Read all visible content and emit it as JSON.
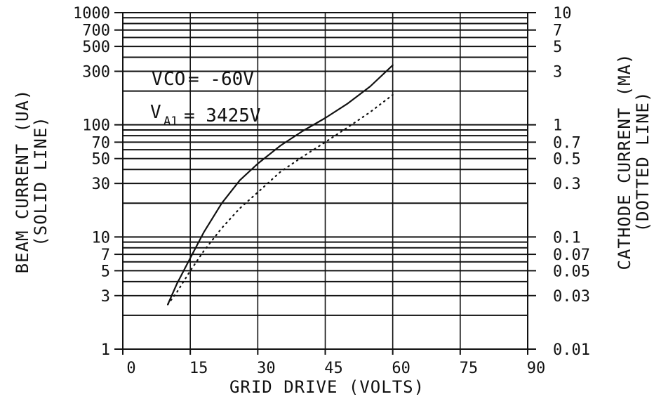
{
  "chart_data": {
    "type": "line",
    "xlabel": "GRID DRIVE (VOLTS)",
    "ylabel_left": [
      "BEAM CURRENT (UA)",
      "(SOLID LINE)"
    ],
    "ylabel_right": [
      "CATHODE CURRENT (MA)",
      "(DOTTED LINE)"
    ],
    "xlim": [
      0,
      90
    ],
    "x_ticks": [
      "0",
      "15",
      "30",
      "45",
      "60",
      "75",
      "90"
    ],
    "x_tick_values": [
      0,
      15,
      30,
      45,
      60,
      75,
      90
    ],
    "ylim_left": [
      1,
      1000
    ],
    "y_scale": "log",
    "y_ticks_left": [
      "1000",
      "700",
      "500",
      "300",
      "100",
      "70",
      "50",
      "30",
      "10",
      "7",
      "5",
      "3",
      "1"
    ],
    "y_tick_values_left": [
      1000,
      700,
      500,
      300,
      100,
      70,
      50,
      30,
      10,
      7,
      5,
      3,
      1
    ],
    "ylim_right": [
      0.01,
      10
    ],
    "y_ticks_right": [
      "10",
      "7",
      "5",
      "3",
      "1",
      "0.7",
      "0.5",
      "0.3",
      "0.1",
      "0.07",
      "0.05",
      "0.03",
      "0.01"
    ],
    "y_tick_values_right": [
      10,
      7,
      5,
      3,
      1,
      0.7,
      0.5,
      0.3,
      0.1,
      0.07,
      0.05,
      0.03,
      0.01
    ],
    "grid": true,
    "grid_minor_values": [
      1,
      2,
      3,
      4,
      5,
      6,
      7,
      8,
      9
    ],
    "annotations": [
      {
        "main": "V",
        "sub": "CO",
        "rest": "= -60V"
      },
      {
        "main": "V",
        "sub": "A1",
        "rest": "= 3425V"
      }
    ],
    "series": [
      {
        "style": "solid",
        "axis": "left",
        "x": [
          10,
          12,
          15,
          18,
          22,
          26,
          30,
          35,
          40,
          45,
          50,
          55,
          60
        ],
        "y": [
          2.5,
          3.8,
          6.5,
          11,
          20,
          32,
          45,
          65,
          88,
          115,
          155,
          220,
          340
        ]
      },
      {
        "style": "dotted",
        "axis": "right",
        "x": [
          10,
          12,
          15,
          18,
          22,
          26,
          30,
          35,
          40,
          45,
          50,
          55,
          60
        ],
        "y": [
          0.025,
          0.032,
          0.05,
          0.075,
          0.12,
          0.18,
          0.25,
          0.38,
          0.52,
          0.7,
          0.95,
          1.3,
          1.85
        ]
      }
    ]
  }
}
